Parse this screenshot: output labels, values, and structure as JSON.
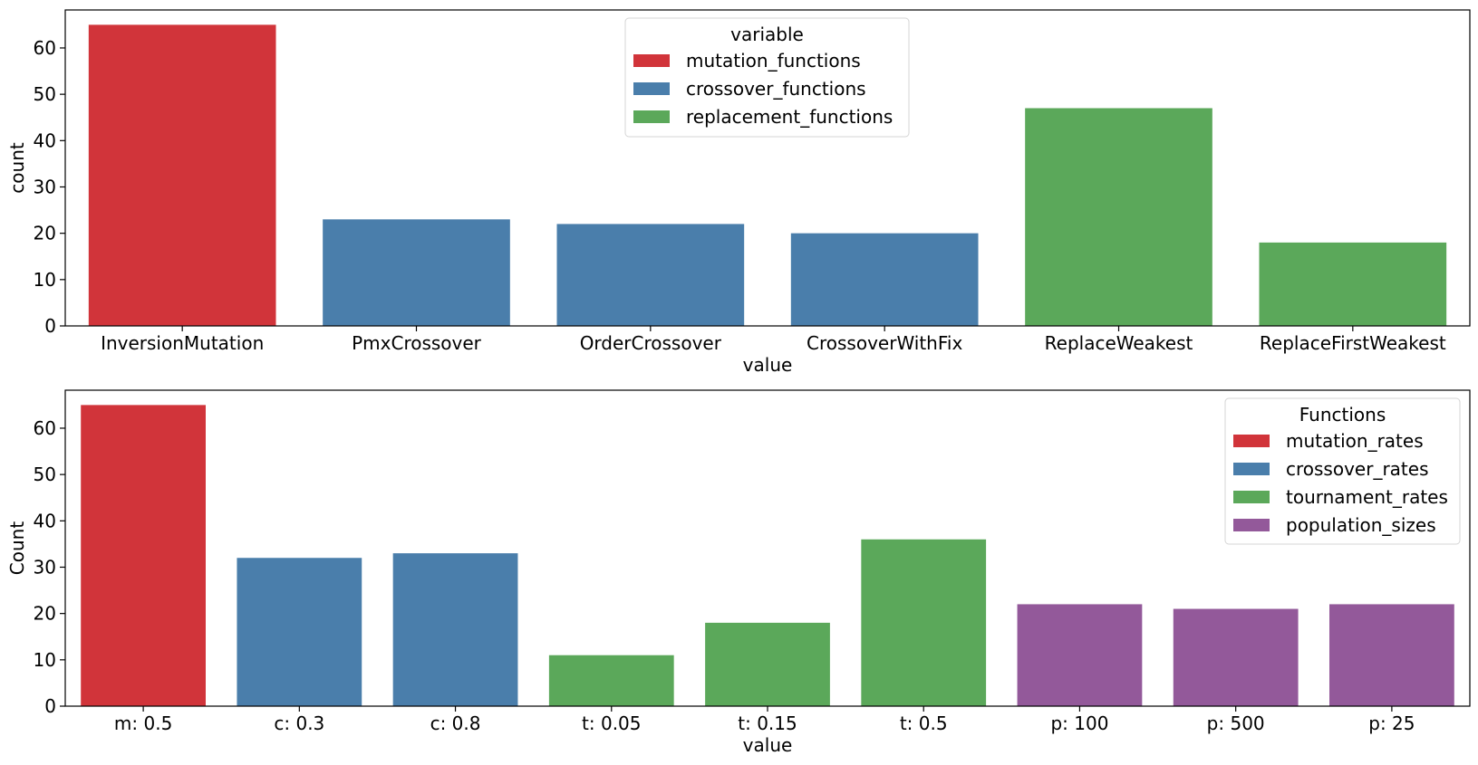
{
  "colors": {
    "red": "#d1343a",
    "blue": "#4a7eab",
    "green": "#5ba85a",
    "purple": "#93599a"
  },
  "chart_data": [
    {
      "type": "bar",
      "xlabel": "value",
      "ylabel": "count",
      "ylim": [
        0,
        68.2
      ],
      "yticks": [
        0,
        10,
        20,
        30,
        40,
        50,
        60
      ],
      "categories": [
        "InversionMutation",
        "PmxCrossover",
        "OrderCrossover",
        "CrossoverWithFix",
        "ReplaceWeakest",
        "ReplaceFirstWeakest"
      ],
      "values": [
        65,
        23,
        22,
        20,
        47,
        18
      ],
      "bar_groups": [
        "mutation_functions",
        "crossover_functions",
        "crossover_functions",
        "crossover_functions",
        "replacement_functions",
        "replacement_functions"
      ],
      "legend": {
        "title": "variable",
        "placement": "top-center",
        "entries": [
          {
            "name": "mutation_functions",
            "color": "#d1343a"
          },
          {
            "name": "crossover_functions",
            "color": "#4a7eab"
          },
          {
            "name": "replacement_functions",
            "color": "#5ba85a"
          }
        ]
      },
      "grid": false
    },
    {
      "type": "bar",
      "xlabel": "value",
      "ylabel": "Count",
      "ylim": [
        0,
        68.2
      ],
      "yticks": [
        0,
        10,
        20,
        30,
        40,
        50,
        60
      ],
      "categories": [
        "m: 0.5",
        "c: 0.3",
        "c: 0.8",
        "t: 0.05",
        "t: 0.15",
        "t: 0.5",
        "p: 100",
        "p: 500",
        "p: 25"
      ],
      "values": [
        65,
        32,
        33,
        11,
        18,
        36,
        22,
        21,
        22
      ],
      "bar_groups": [
        "mutation_rates",
        "crossover_rates",
        "crossover_rates",
        "tournament_rates",
        "tournament_rates",
        "tournament_rates",
        "population_sizes",
        "population_sizes",
        "population_sizes"
      ],
      "legend": {
        "title": "Functions",
        "placement": "top-right",
        "entries": [
          {
            "name": "mutation_rates",
            "color": "#d1343a"
          },
          {
            "name": "crossover_rates",
            "color": "#4a7eab"
          },
          {
            "name": "tournament_rates",
            "color": "#5ba85a"
          },
          {
            "name": "population_sizes",
            "color": "#93599a"
          }
        ]
      },
      "grid": false
    }
  ]
}
